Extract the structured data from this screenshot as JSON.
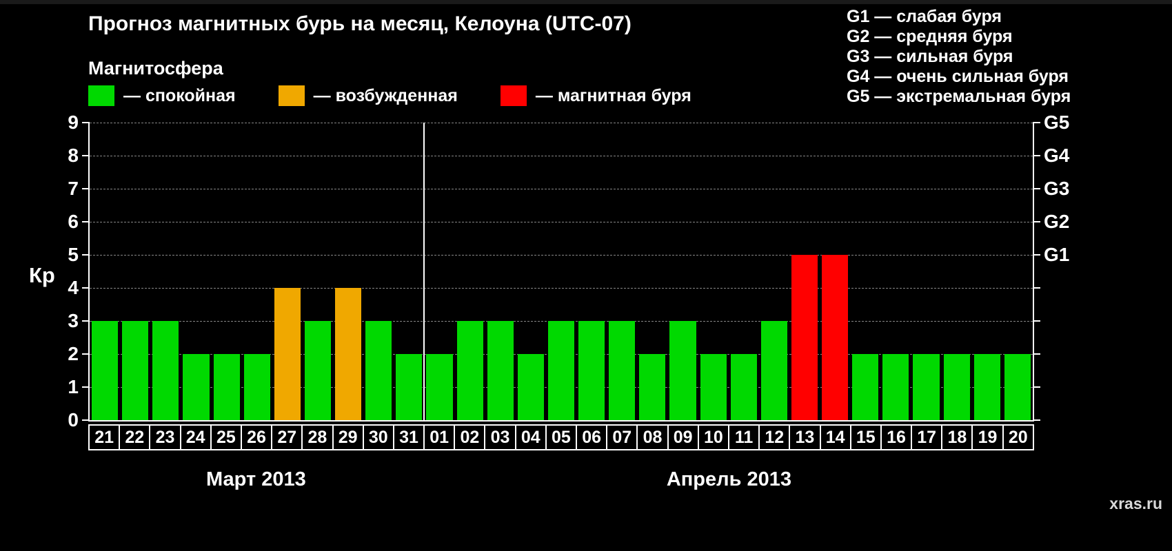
{
  "header": {
    "title": "Прогноз магнитных бурь на месяц, Келоуна (UTC-07)",
    "subtitle": "Магнитосфера"
  },
  "legend": {
    "items": [
      {
        "name": "quiet",
        "label": "— спокойная",
        "color": "#00d900"
      },
      {
        "name": "excited",
        "label": "— возбужденная",
        "color": "#f0a800"
      },
      {
        "name": "storm",
        "label": "— магнитная буря",
        "color": "#ff0000"
      }
    ]
  },
  "storm_scale": {
    "items": [
      "G1 — слабая буря",
      "G2 — средняя буря",
      "G3 — сильная буря",
      "G4 — очень сильная буря",
      "G5 — экстремальная буря"
    ]
  },
  "watermark": "xras.ru",
  "chart_data": {
    "type": "bar",
    "title": "Прогноз магнитных бурь на месяц, Келоуна (UTC-07)",
    "ylabel": "Кр",
    "ylim": [
      0,
      9
    ],
    "yticks": [
      0,
      1,
      2,
      3,
      4,
      5,
      6,
      7,
      8,
      9
    ],
    "grid": "horizontal-dashed",
    "legend_position": "top-left",
    "right_axis_labels": [
      {
        "label": "G5",
        "value": 9
      },
      {
        "label": "G4",
        "value": 8
      },
      {
        "label": "G3",
        "value": 7
      },
      {
        "label": "G2",
        "value": 6
      },
      {
        "label": "G1",
        "value": 5
      }
    ],
    "categories": [
      "21",
      "22",
      "23",
      "24",
      "25",
      "26",
      "27",
      "28",
      "29",
      "30",
      "31",
      "01",
      "02",
      "03",
      "04",
      "05",
      "06",
      "07",
      "08",
      "09",
      "10",
      "11",
      "12",
      "13",
      "14",
      "15",
      "16",
      "17",
      "18",
      "19",
      "20"
    ],
    "values": [
      3,
      3,
      3,
      2,
      2,
      2,
      4,
      3,
      4,
      3,
      2,
      2,
      3,
      3,
      2,
      3,
      3,
      3,
      2,
      3,
      2,
      2,
      3,
      5,
      5,
      2,
      2,
      2,
      2,
      2,
      2
    ],
    "statuses": [
      "quiet",
      "quiet",
      "quiet",
      "quiet",
      "quiet",
      "quiet",
      "excited",
      "quiet",
      "excited",
      "quiet",
      "quiet",
      "quiet",
      "quiet",
      "quiet",
      "quiet",
      "quiet",
      "quiet",
      "quiet",
      "quiet",
      "quiet",
      "quiet",
      "quiet",
      "quiet",
      "storm",
      "storm",
      "quiet",
      "quiet",
      "quiet",
      "quiet",
      "quiet",
      "quiet"
    ],
    "color_map": {
      "quiet": "#00d900",
      "excited": "#f0a800",
      "storm": "#ff0000"
    },
    "months": [
      {
        "label": "Март 2013",
        "days": 11
      },
      {
        "label": "Апрель 2013",
        "days": 20
      }
    ]
  }
}
